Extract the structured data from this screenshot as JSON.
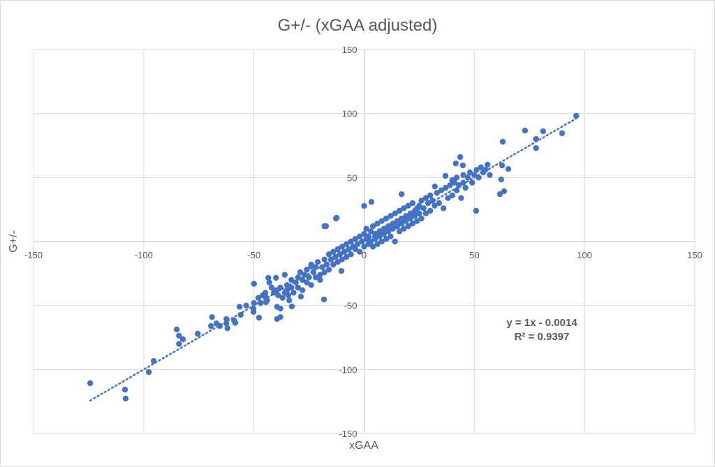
{
  "chart_data": {
    "type": "scatter",
    "title": "G+/- (xGAA adjusted)",
    "xlabel": "xGAA",
    "ylabel": "G+/-",
    "xlim": [
      -150,
      150
    ],
    "ylim": [
      -150,
      150
    ],
    "xticks": [
      "-150",
      "-100",
      "-50",
      "0",
      "50",
      "100",
      "150"
    ],
    "yticks": [
      "-150",
      "-100",
      "-50",
      "0",
      "50",
      "100",
      "150"
    ],
    "grid": true,
    "marker_color": "#4472C4",
    "trendline": {
      "type": "linear",
      "style": "dotted",
      "slope": 1,
      "intercept": -0.0014,
      "x_range": [
        -124.3,
        96.2
      ],
      "equation_label": "y = 1x - 0.0014",
      "r2_label": "R² = 0.9397"
    },
    "points": [
      [
        -124.3,
        -110.7
      ],
      [
        -108.5,
        -115.7
      ],
      [
        -108.2,
        -122.7
      ],
      [
        -97.7,
        -102
      ],
      [
        -95.5,
        -93.3
      ],
      [
        -85,
        -68.7
      ],
      [
        -84,
        -73.6
      ],
      [
        -82.2,
        -76.4
      ],
      [
        -84,
        -80
      ],
      [
        -75.5,
        -72
      ],
      [
        -69,
        -59
      ],
      [
        -69.5,
        -66
      ],
      [
        -67,
        -64
      ],
      [
        -65.5,
        -66
      ],
      [
        -62.5,
        -60.5
      ],
      [
        -62.5,
        -64
      ],
      [
        -62,
        -67.7
      ],
      [
        -59,
        -61.7
      ],
      [
        -58.5,
        -63.5
      ],
      [
        -56.5,
        -51
      ],
      [
        -56,
        -57.3
      ],
      [
        -53.5,
        -50
      ],
      [
        -50,
        -33
      ],
      [
        -50,
        -48
      ],
      [
        -50.2,
        -52.4
      ],
      [
        -50.2,
        -55
      ],
      [
        -47.7,
        -59.5
      ],
      [
        -44.8,
        -40
      ],
      [
        -44.5,
        -47.5
      ],
      [
        -44.8,
        -43
      ],
      [
        -43.5,
        -28.4
      ],
      [
        -40,
        -28.4
      ],
      [
        -39.5,
        -60.5
      ],
      [
        -38,
        -59
      ],
      [
        -39.5,
        -51
      ],
      [
        -38,
        -52.4
      ],
      [
        -36,
        -26
      ],
      [
        -34.4,
        -42
      ],
      [
        -32.8,
        -50.7
      ],
      [
        -28.7,
        -43
      ],
      [
        -24,
        -19.6
      ],
      [
        -18.2,
        -45.3
      ],
      [
        -18,
        12
      ],
      [
        -12.5,
        18.5
      ],
      [
        -10.3,
        -23
      ],
      [
        96.2,
        98.2
      ],
      [
        89.8,
        84.6
      ],
      [
        81.2,
        86.2
      ],
      [
        73,
        86.7
      ],
      [
        78,
        80.2
      ],
      [
        78,
        73
      ],
      [
        62.9,
        78
      ],
      [
        62.6,
        59.5
      ],
      [
        65.4,
        56.7
      ],
      [
        62.2,
        48.5
      ],
      [
        63.5,
        39.3
      ],
      [
        61.6,
        37
      ],
      [
        50.8,
        24
      ],
      [
        43.6,
        66
      ],
      [
        41.6,
        61
      ],
      [
        44.8,
        59.5
      ],
      [
        36.9,
        51.3
      ],
      [
        32.1,
        43
      ],
      [
        17,
        37
      ],
      [
        3.3,
        31
      ],
      [
        0,
        27.8
      ],
      [
        -12.8,
        18
      ],
      [
        -17.3,
        12
      ],
      [
        -46,
        -42
      ],
      [
        -47,
        -48
      ],
      [
        -44,
        -46
      ],
      [
        -43,
        -32
      ],
      [
        -48,
        -44
      ],
      [
        -42,
        -36
      ],
      [
        -41,
        -40
      ],
      [
        -40,
        -38
      ],
      [
        -39,
        -42
      ],
      [
        -38,
        -36
      ],
      [
        -37,
        -44
      ],
      [
        -36,
        -40
      ],
      [
        -35,
        -34
      ],
      [
        -35,
        -38
      ],
      [
        -34,
        -46
      ],
      [
        -33,
        -30
      ],
      [
        -33,
        -36
      ],
      [
        -32,
        -40
      ],
      [
        -31,
        -32
      ],
      [
        -30,
        -28
      ],
      [
        -30,
        -36
      ],
      [
        -29,
        -24
      ],
      [
        -28,
        -30
      ],
      [
        -28,
        -38
      ],
      [
        -27,
        -26
      ],
      [
        -26,
        -32
      ],
      [
        -26,
        -22
      ],
      [
        -25,
        -28
      ],
      [
        -24,
        -34
      ],
      [
        -24,
        -18
      ],
      [
        -23,
        -24
      ],
      [
        -22,
        -28
      ],
      [
        -22,
        -20
      ],
      [
        -21,
        -16
      ],
      [
        -20,
        -26
      ],
      [
        -20,
        -30
      ],
      [
        -19,
        -20
      ],
      [
        -18,
        -14
      ],
      [
        -18,
        -24
      ],
      [
        -17,
        -18
      ],
      [
        -16,
        -22
      ],
      [
        -16,
        -10
      ],
      [
        -15,
        -14
      ],
      [
        -14,
        -18
      ],
      [
        -14,
        -8
      ],
      [
        -13,
        -12
      ],
      [
        -12,
        -16
      ],
      [
        -12,
        -6
      ],
      [
        -11,
        -10
      ],
      [
        -10,
        -14
      ],
      [
        -10,
        -4
      ],
      [
        -9,
        -8
      ],
      [
        -8,
        -2
      ],
      [
        -8,
        -12
      ],
      [
        -7,
        -6
      ],
      [
        -6,
        0
      ],
      [
        -6,
        -10
      ],
      [
        -5,
        -4
      ],
      [
        -4,
        2
      ],
      [
        -4,
        -6
      ],
      [
        -3,
        -2
      ],
      [
        -2,
        4
      ],
      [
        -2,
        -8
      ],
      [
        -1,
        0
      ],
      [
        0,
        -4
      ],
      [
        0,
        6
      ],
      [
        1,
        2
      ],
      [
        1,
        10
      ],
      [
        2,
        -2
      ],
      [
        2,
        4
      ],
      [
        3,
        8
      ],
      [
        3,
        0
      ],
      [
        4,
        12
      ],
      [
        4,
        -4
      ],
      [
        5,
        6
      ],
      [
        5,
        2
      ],
      [
        6,
        14
      ],
      [
        6,
        -2
      ],
      [
        7,
        8
      ],
      [
        7,
        4
      ],
      [
        8,
        16
      ],
      [
        8,
        0
      ],
      [
        9,
        10
      ],
      [
        9,
        6
      ],
      [
        10,
        18
      ],
      [
        10,
        2
      ],
      [
        11,
        12
      ],
      [
        11,
        8
      ],
      [
        12,
        20
      ],
      [
        12,
        4
      ],
      [
        13,
        14
      ],
      [
        13,
        10
      ],
      [
        14,
        22
      ],
      [
        14,
        0
      ],
      [
        15,
        16
      ],
      [
        15,
        12
      ],
      [
        16,
        24
      ],
      [
        16,
        8
      ],
      [
        17,
        18
      ],
      [
        17,
        14
      ],
      [
        18,
        26
      ],
      [
        18,
        10
      ],
      [
        19,
        20
      ],
      [
        19,
        16
      ],
      [
        20,
        28
      ],
      [
        20,
        12
      ],
      [
        21,
        22
      ],
      [
        21,
        18
      ],
      [
        22,
        30
      ],
      [
        22,
        14
      ],
      [
        23,
        24
      ],
      [
        23,
        20
      ],
      [
        24,
        26
      ],
      [
        24,
        16
      ],
      [
        25,
        28
      ],
      [
        25,
        22
      ],
      [
        26,
        32
      ],
      [
        26,
        18
      ],
      [
        27,
        26
      ],
      [
        28,
        34
      ],
      [
        28,
        22
      ],
      [
        29,
        30
      ],
      [
        30,
        36
      ],
      [
        30,
        24
      ],
      [
        31,
        32
      ],
      [
        32,
        28
      ],
      [
        33,
        38
      ],
      [
        34,
        30
      ],
      [
        35,
        40
      ],
      [
        36,
        26
      ],
      [
        37,
        42
      ],
      [
        38,
        34
      ],
      [
        39,
        44
      ],
      [
        40,
        48
      ],
      [
        40,
        36
      ],
      [
        41,
        46
      ],
      [
        42,
        50
      ],
      [
        42,
        40
      ],
      [
        43,
        44
      ],
      [
        44,
        34
      ],
      [
        45,
        52
      ],
      [
        45,
        46
      ],
      [
        46,
        42
      ],
      [
        47,
        50
      ],
      [
        48,
        54
      ],
      [
        49,
        46
      ],
      [
        50,
        52
      ],
      [
        51,
        56
      ],
      [
        52,
        50
      ],
      [
        53,
        58
      ],
      [
        54,
        54
      ],
      [
        55,
        56
      ],
      [
        56,
        60
      ],
      [
        57,
        52
      ]
    ]
  }
}
